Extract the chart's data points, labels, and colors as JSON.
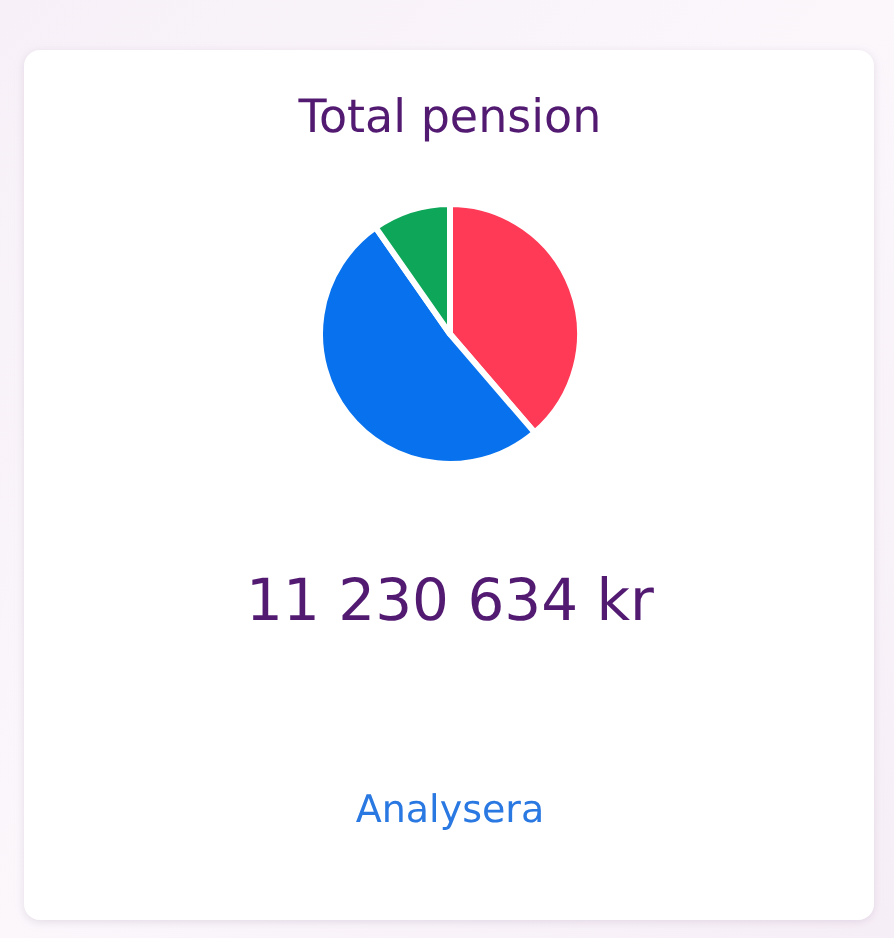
{
  "chart_data": {
    "type": "pie",
    "title": "Total pension",
    "categories": [
      null,
      null,
      null
    ],
    "values": [
      38.7,
      51.6,
      9.7
    ],
    "colors": [
      "#ff3a56",
      "#0872ee",
      "#0ea75a"
    ],
    "annotations": [
      "11 230 634 kr",
      "Analysera"
    ]
  }
}
